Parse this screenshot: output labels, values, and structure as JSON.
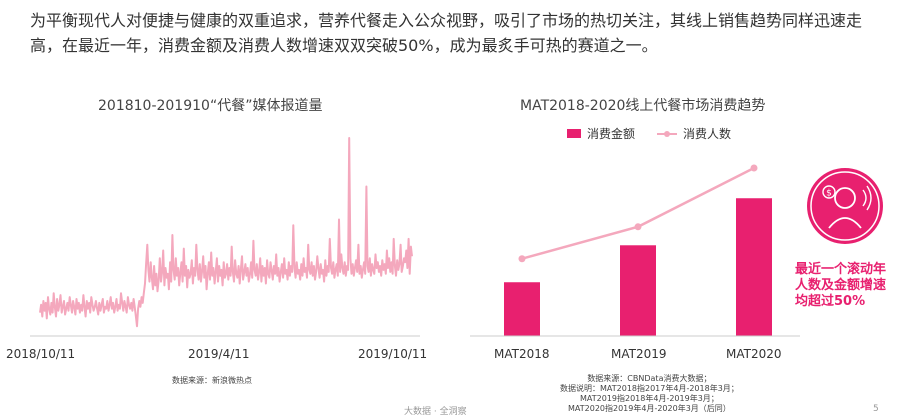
{
  "intro_text": "为平衡现代人对便捷与健康的双重追求，营养代餐走入公众视野，吸引了市场的热切关注，其线上销售趋势同样迅速走高，在最近一年，消费金额及消费人数增速双双突破50%，成为最炙手可热的赛道之一。",
  "chart_data": [
    {
      "type": "line",
      "title": "201810-201910“代餐”媒体报道量",
      "x_tick_labels": [
        "2018/10/11",
        "2019/4/11",
        "2019/10/11"
      ],
      "x_range": [
        "2018/10/11",
        "2019/10/11"
      ],
      "ylim": [
        0,
        100
      ],
      "y_axis_shown": false,
      "grid": false,
      "color": "#f4a8bd",
      "note": "数据来源：新浪微热点",
      "values": [
        10,
        14,
        8,
        16,
        11,
        15,
        7,
        18,
        12,
        9,
        15,
        10,
        20,
        13,
        8,
        17,
        11,
        14,
        19,
        10,
        13,
        16,
        9,
        12,
        15,
        11,
        18,
        14,
        10,
        16,
        13,
        9,
        17,
        12,
        15,
        10,
        14,
        11,
        19,
        13,
        8,
        16,
        12,
        15,
        10,
        18,
        14,
        11,
        13,
        16,
        12,
        9,
        15,
        11,
        14,
        17,
        10,
        13,
        12,
        16,
        11,
        14,
        18,
        12,
        15,
        10,
        13,
        17,
        11,
        14,
        12,
        20,
        15,
        11,
        16,
        13,
        10,
        18,
        14,
        12,
        15,
        11,
        17,
        13,
        8,
        3,
        12,
        16,
        13,
        18,
        15,
        20,
        25,
        35,
        45,
        32,
        26,
        36,
        28,
        22,
        34,
        24,
        30,
        21,
        27,
        38,
        26,
        31,
        42,
        24,
        33,
        28,
        30,
        22,
        36,
        26,
        50,
        32,
        27,
        38,
        29,
        33,
        24,
        31,
        36,
        26,
        43,
        29,
        34,
        23,
        32,
        28,
        30,
        37,
        25,
        33,
        29,
        45,
        32,
        27,
        35,
        26,
        31,
        39,
        28,
        34,
        22,
        30,
        36,
        27,
        41,
        29,
        33,
        25,
        31,
        38,
        26,
        34,
        29,
        32,
        24,
        36,
        28,
        30,
        35,
        27,
        33,
        29,
        44,
        31,
        26,
        37,
        30,
        28,
        34,
        25,
        32,
        39,
        27,
        31,
        35,
        29,
        33,
        26,
        30,
        36,
        28,
        47,
        32,
        29,
        35,
        27,
        31,
        38,
        26,
        34,
        29,
        33,
        25,
        37,
        30,
        28,
        36,
        32,
        27,
        34,
        30,
        40,
        29,
        33,
        26,
        31,
        35,
        28,
        38,
        30,
        32,
        27,
        36,
        29,
        34,
        31,
        55,
        33,
        28,
        36,
        30,
        32,
        27,
        35,
        29,
        38,
        31,
        33,
        28,
        45,
        32,
        30,
        36,
        29,
        34,
        27,
        31,
        39,
        33,
        28,
        35,
        30,
        32,
        26,
        37,
        29,
        34,
        31,
        48,
        33,
        30,
        36,
        28,
        32,
        35,
        29,
        58,
        31,
        40,
        33,
        30,
        36,
        29,
        34,
        32,
        100,
        38,
        30,
        35,
        29,
        33,
        37,
        31,
        45,
        30,
        34,
        28,
        32,
        36,
        30,
        75,
        34,
        31,
        38,
        29,
        35,
        32,
        30,
        40,
        33,
        36,
        31,
        34,
        29,
        37,
        32,
        35,
        30,
        42,
        33,
        38,
        31,
        36,
        30,
        48,
        34,
        29,
        37,
        32,
        35,
        45,
        31,
        34,
        38,
        36,
        42,
        33,
        48,
        30,
        44,
        39
      ]
    },
    {
      "type": "bar",
      "title": "MAT2018-2020线上代餐市场消费趋势",
      "categories": [
        "MAT2018",
        "MAT2019",
        "MAT2020"
      ],
      "series": [
        {
          "name": "消费金额",
          "kind": "bar",
          "color": "#e8206f",
          "values": [
            32,
            54,
            82
          ]
        },
        {
          "name": "消费人数",
          "kind": "line",
          "color": "#f4a8bd",
          "values": [
            46,
            65,
            100
          ]
        }
      ],
      "ylim": [
        0,
        100
      ],
      "y_axis_shown": false,
      "legend_position": "top",
      "grid": false,
      "source_lines": [
        "数据来源：CBNData消费大数据；",
        "数据说明：MAT2018指2017年4月-2018年3月；",
        "MAT2019指2018年4月-2019年3月；",
        "MAT2020指2019年4月-2020年3月（后同）"
      ]
    }
  ],
  "callout": {
    "line1": "最近一个滚动年",
    "line2": "人数及金额增速",
    "line3_prefix": "均",
    "line3_highlight": "超过50%",
    "icon": "money-person-icon"
  },
  "footer": {
    "brand": "大数据 · 全洞察",
    "page": "5"
  },
  "watermark": "CBNData",
  "colors": {
    "accent": "#e8206f",
    "line_pink": "#f4a8bd"
  }
}
